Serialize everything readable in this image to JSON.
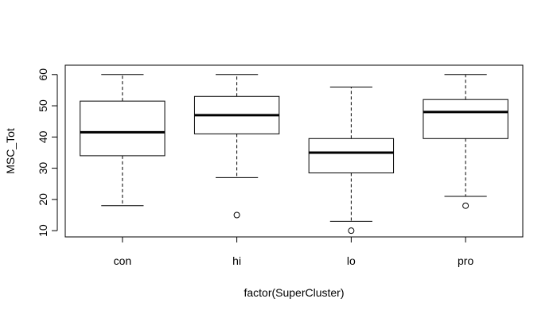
{
  "chart_data": {
    "type": "boxplot",
    "title": "",
    "xlabel": "factor(SuperCluster)",
    "ylabel": "MSC_Tot",
    "ylim": [
      8,
      63
    ],
    "yticks": [
      10,
      20,
      30,
      40,
      50,
      60
    ],
    "ytick_labels": [
      "10",
      "20",
      "30",
      "40",
      "50",
      "60"
    ],
    "categories": [
      "con",
      "hi",
      "lo",
      "pro"
    ],
    "boxes": [
      {
        "category": "con",
        "whisker_low": 18,
        "q1": 34,
        "median": 41.5,
        "q3": 51.5,
        "whisker_high": 60,
        "outliers": []
      },
      {
        "category": "hi",
        "whisker_low": 27,
        "q1": 41,
        "median": 47,
        "q3": 53,
        "whisker_high": 60,
        "outliers": [
          15
        ]
      },
      {
        "category": "lo",
        "whisker_low": 13,
        "q1": 28.5,
        "median": 35,
        "q3": 39.5,
        "whisker_high": 56,
        "outliers": [
          10
        ]
      },
      {
        "category": "pro",
        "whisker_low": 21,
        "q1": 39.5,
        "median": 48,
        "q3": 52,
        "whisker_high": 60,
        "outliers": [
          18
        ]
      }
    ],
    "grid": false,
    "legend": "none"
  }
}
